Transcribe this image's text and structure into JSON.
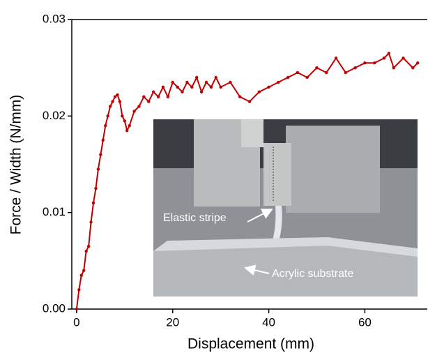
{
  "chart_data": {
    "type": "line",
    "x_label": "Displacement (mm)",
    "y_label": "Force / Width (N/mm)",
    "annotations": [
      "Elastic stripe",
      "Acrylic substrate"
    ],
    "xlim": [
      -1,
      73
    ],
    "ylim": [
      0,
      0.03
    ],
    "xticks": [
      0,
      20,
      40,
      60
    ],
    "yticks": [
      {
        "value": 0,
        "label": "0.00"
      },
      0.01,
      0.02,
      0.03
    ],
    "x": [
      0,
      0.5,
      1,
      1.5,
      2,
      2.5,
      3,
      3.5,
      4,
      4.5,
      5,
      5.5,
      6,
      6.5,
      7,
      7.5,
      8,
      8.5,
      9,
      9.5,
      10,
      10.5,
      11,
      12,
      13,
      14,
      15,
      16,
      17,
      18,
      19,
      20,
      21,
      22,
      23,
      24,
      25,
      26,
      27,
      28,
      29,
      30,
      32,
      34,
      36,
      38,
      40,
      42,
      44,
      46,
      48,
      50,
      52,
      54,
      56,
      58,
      60,
      62,
      64,
      65,
      66,
      68,
      70,
      71
    ],
    "series": [
      {
        "color": "#c00000",
        "values": [
          0,
          0.002,
          0.0035,
          0.004,
          0.006,
          0.0065,
          0.009,
          0.011,
          0.0125,
          0.0145,
          0.016,
          0.0175,
          0.019,
          0.02,
          0.021,
          0.0215,
          0.022,
          0.0222,
          0.0215,
          0.02,
          0.0195,
          0.0185,
          0.019,
          0.0205,
          0.021,
          0.022,
          0.0215,
          0.0225,
          0.022,
          0.023,
          0.022,
          0.0235,
          0.023,
          0.0225,
          0.0235,
          0.023,
          0.024,
          0.0225,
          0.0235,
          0.023,
          0.024,
          0.023,
          0.0235,
          0.022,
          0.0215,
          0.0225,
          0.023,
          0.0235,
          0.024,
          0.0245,
          0.024,
          0.025,
          0.0245,
          0.026,
          0.0245,
          0.025,
          0.0255,
          0.0255,
          0.026,
          0.0265,
          0.025,
          0.026,
          0.025,
          0.0255
        ]
      }
    ]
  }
}
